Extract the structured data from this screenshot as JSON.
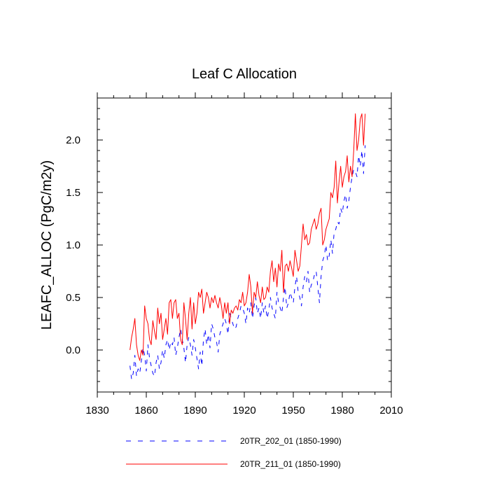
{
  "chart_data": {
    "type": "line",
    "title": "Leaf C Allocation",
    "xlabel": "",
    "ylabel": "LEAFC_ALLOC  (PgC/m2y)",
    "xlim": [
      1830,
      2010
    ],
    "ylim": [
      -0.4,
      2.4
    ],
    "x_ticks": [
      1830,
      1860,
      1890,
      1920,
      1950,
      1980,
      2010
    ],
    "x_tick_labels": [
      "1830",
      "1860",
      "1890",
      "1920",
      "1950",
      "1980",
      "2010"
    ],
    "y_ticks": [
      0.0,
      0.5,
      1.0,
      1.5,
      2.0
    ],
    "y_tick_labels": [
      "0.0",
      "0.5",
      "1.0",
      "1.5",
      "2.0"
    ],
    "grid": false,
    "legend_position": "bottom",
    "series": [
      {
        "name": "20TR_202_01 (1850-1990)",
        "color": "#0000ff",
        "style": "dashed",
        "x_start": 1850,
        "x_step": 1,
        "values": [
          -0.15,
          -0.28,
          -0.22,
          -0.05,
          -0.25,
          -0.18,
          -0.22,
          -0.1,
          0.02,
          -0.05,
          -0.2,
          0.05,
          -0.08,
          -0.15,
          -0.22,
          -0.25,
          -0.12,
          -0.05,
          -0.18,
          -0.12,
          0.0,
          -0.08,
          0.05,
          0.1,
          0.0,
          0.08,
          0.05,
          0.12,
          -0.05,
          0.02,
          0.12,
          0.2,
          0.1,
          0.02,
          -0.12,
          0.05,
          0.12,
          0.05,
          -0.05,
          0.1,
          0.02,
          -0.08,
          -0.18,
          -0.02,
          -0.15,
          0.1,
          0.2,
          0.05,
          0.15,
          0.02,
          0.25,
          0.2,
          0.12,
          0.08,
          -0.02,
          0.15,
          0.2,
          0.25,
          0.3,
          0.25,
          0.15,
          0.35,
          0.3,
          0.25,
          0.2,
          0.22,
          0.3,
          0.35,
          0.42,
          0.4,
          0.35,
          0.25,
          0.4,
          0.35,
          0.45,
          0.3,
          0.42,
          0.5,
          0.35,
          0.4,
          0.3,
          0.45,
          0.35,
          0.42,
          0.3,
          0.38,
          0.5,
          0.4,
          0.35,
          0.3,
          0.55,
          0.45,
          0.4,
          0.35,
          0.5,
          0.6,
          0.4,
          0.45,
          0.55,
          0.5,
          0.45,
          0.6,
          0.7,
          0.55,
          0.5,
          0.42,
          0.6,
          0.7,
          0.65,
          0.75,
          0.55,
          0.62,
          0.65,
          0.72,
          0.75,
          0.6,
          0.45,
          0.7,
          0.85,
          0.9,
          1.0,
          0.85,
          0.9,
          1.05,
          0.92,
          1.12,
          1.15,
          1.22,
          1.2,
          1.35,
          1.3,
          1.42,
          1.48,
          1.35,
          1.42,
          1.55,
          1.65,
          1.72,
          1.7,
          1.65,
          1.85,
          1.75,
          1.9,
          1.68,
          1.95
        ]
      },
      {
        "name": "20TR_211_01 (1850-1990)",
        "color": "#ff0000",
        "style": "solid",
        "x_start": 1850,
        "x_step": 1,
        "values": [
          0.0,
          0.12,
          0.2,
          0.3,
          0.05,
          -0.05,
          -0.1,
          0.0,
          -0.05,
          0.42,
          0.3,
          0.25,
          0.1,
          0.05,
          0.28,
          0.18,
          0.1,
          0.4,
          0.25,
          0.35,
          0.1,
          0.2,
          0.3,
          0.15,
          0.45,
          0.48,
          0.3,
          0.45,
          0.48,
          0.3,
          0.35,
          0.1,
          0.05,
          0.45,
          0.3,
          0.1,
          0.35,
          0.5,
          0.2,
          0.45,
          0.25,
          0.35,
          0.55,
          0.5,
          0.58,
          0.35,
          0.45,
          0.55,
          0.5,
          0.4,
          0.5,
          0.45,
          0.52,
          0.45,
          0.4,
          0.5,
          0.42,
          0.3,
          0.45,
          0.35,
          0.45,
          0.25,
          0.38,
          0.35,
          0.4,
          0.42,
          0.38,
          0.48,
          0.45,
          0.55,
          0.42,
          0.45,
          0.55,
          0.72,
          0.6,
          0.35,
          0.55,
          0.5,
          0.65,
          0.52,
          0.45,
          0.6,
          0.48,
          0.5,
          0.6,
          0.55,
          0.75,
          0.85,
          0.65,
          0.78,
          0.6,
          0.82,
          0.75,
          0.95,
          0.55,
          0.8,
          0.82,
          0.75,
          0.85,
          0.78,
          0.7,
          0.95,
          0.85,
          0.75,
          0.8,
          1.0,
          1.2,
          1.05,
          1.1,
          1.0,
          1.02,
          1.15,
          1.2,
          1.25,
          1.15,
          1.2,
          1.3,
          1.35,
          1.0,
          1.05,
          1.15,
          1.2,
          1.25,
          1.5,
          1.45,
          1.55,
          1.8,
          1.4,
          1.6,
          1.75,
          1.55,
          1.65,
          1.7,
          1.85,
          1.6,
          1.75,
          1.65,
          1.9,
          2.25,
          1.9,
          2.0,
          2.2,
          2.25,
          1.95,
          2.25
        ]
      }
    ]
  }
}
